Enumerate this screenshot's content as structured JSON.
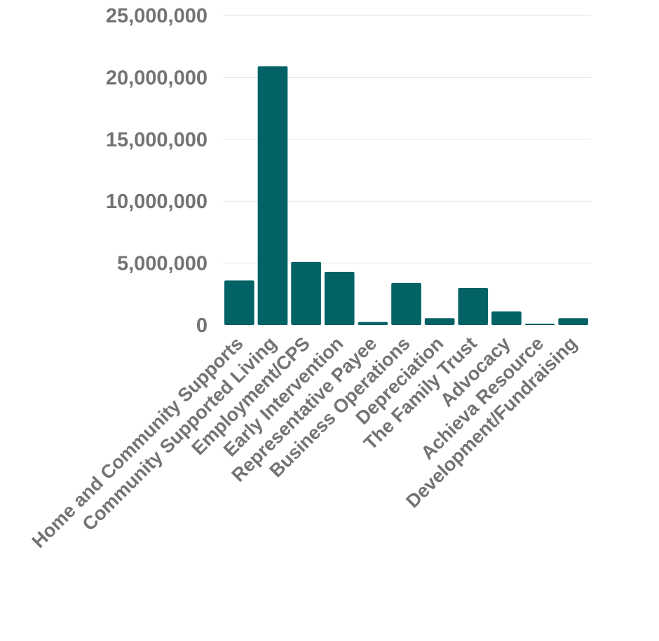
{
  "chart_data": {
    "type": "bar",
    "title": "",
    "xlabel": "",
    "ylabel": "",
    "ylim": [
      0,
      25000000
    ],
    "yticks": [
      0,
      5000000,
      10000000,
      15000000,
      20000000,
      25000000
    ],
    "ytick_labels": [
      "0",
      "5,000,000",
      "10,000,000",
      "15,000,000",
      "20,000,000",
      "25,000,000"
    ],
    "grid": true,
    "categories": [
      "Home and Community Supports",
      "Community Supported Living",
      "Employment/CPS",
      "Early Intervention",
      "Representative Payee",
      "Business Operations",
      "Depreciation",
      "The Family Trust",
      "Advocacy",
      "Achieva Resource",
      "Development/Fundraising"
    ],
    "values": [
      3600000,
      20900000,
      5100000,
      4300000,
      250000,
      3400000,
      550000,
      3000000,
      1100000,
      80000,
      550000
    ],
    "colors": {
      "bar": "#026266",
      "text": "#737373",
      "grid": "#e3e3e3"
    }
  }
}
